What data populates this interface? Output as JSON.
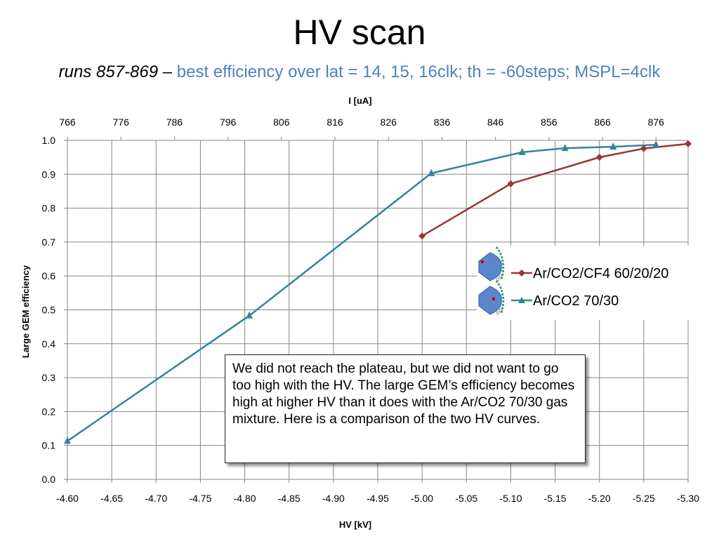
{
  "slide": {
    "title": "HV scan",
    "subtitle_runs": "runs 857-869",
    "subtitle_dash": " – ",
    "subtitle_detail": "best efficiency over lat = 14, 15, 16clk; th = -60steps; MSPL=4clk",
    "note": "We did not reach the plateau, but we did not want to go too high with the HV. The large GEM’s efficiency becomes high at higher HV than it does with the Ar/CO2 70/30 gas mixture. Here is a comparison of the two HV curves."
  },
  "chart_data": {
    "type": "line",
    "xlabel": "HV [kV]",
    "ylabel": "Large GEM efficiency",
    "x2label": "I [uA]",
    "xlim": [
      -4.6,
      -5.3
    ],
    "ylim": [
      0.0,
      1.0
    ],
    "x2lim": [
      766,
      882
    ],
    "x_ticks": [
      "-4.60",
      "-4.65",
      "-4.70",
      "-4.75",
      "-4.80",
      "-4.85",
      "-4.90",
      "-4.95",
      "-5.00",
      "-5.05",
      "-5.10",
      "-5.15",
      "-5.20",
      "-5.25",
      "-5.30"
    ],
    "y_ticks": [
      "0.0",
      "0.1",
      "0.2",
      "0.3",
      "0.4",
      "0.5",
      "0.6",
      "0.7",
      "0.8",
      "0.9",
      "1.0"
    ],
    "x2_ticks": [
      "766",
      "776",
      "786",
      "796",
      "806",
      "816",
      "826",
      "836",
      "846",
      "856",
      "866",
      "876"
    ],
    "grid": true,
    "legend_position": "right",
    "series": [
      {
        "name": "Ar/CO2/CF4 60/20/20",
        "axis": "HV",
        "color": "#953735",
        "marker": "diamond",
        "x": [
          -5.0,
          -5.1,
          -5.2,
          -5.25,
          -5.3
        ],
        "y": [
          0.718,
          0.872,
          0.95,
          0.976,
          0.99
        ]
      },
      {
        "name": "Ar/CO2 70/30",
        "axis": "I",
        "color": "#31859c",
        "marker": "triangle",
        "x": [
          766,
          800,
          834,
          851,
          859,
          868,
          876
        ],
        "y": [
          0.113,
          0.483,
          0.903,
          0.965,
          0.977,
          0.981,
          0.987
        ]
      }
    ]
  }
}
